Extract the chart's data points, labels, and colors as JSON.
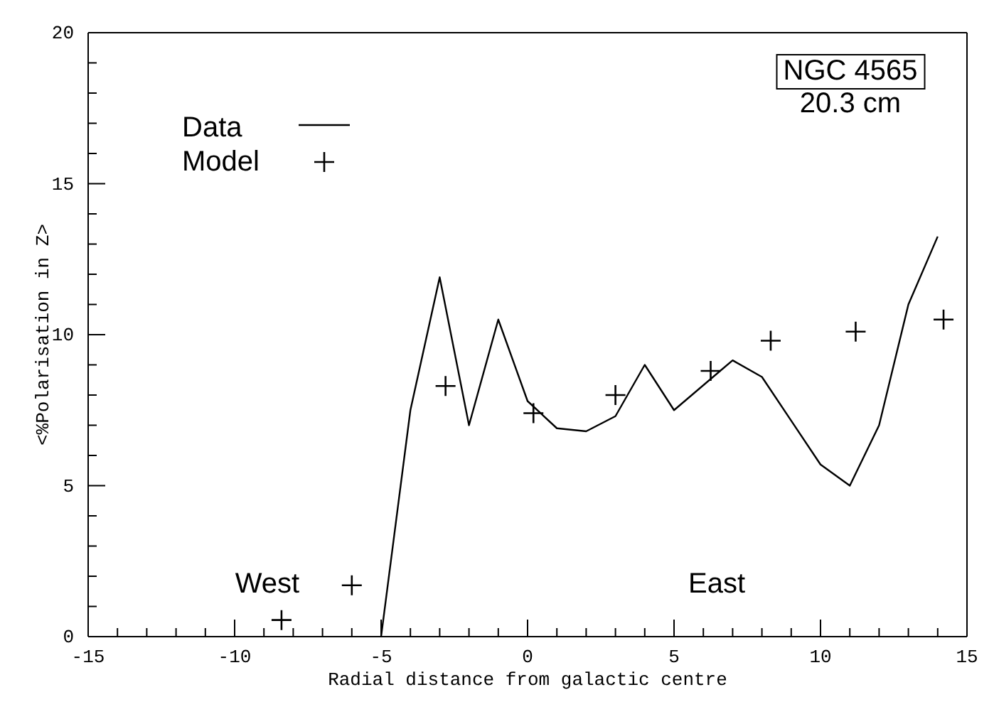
{
  "chart_data": {
    "type": "line",
    "xlabel": "Radial distance from galactic centre",
    "ylabel": "<%Polarisation in Z>",
    "series": [
      {
        "name": "Data",
        "type": "line",
        "color": "#000000",
        "marker": "none",
        "x": [
          -5,
          -4,
          -3,
          -2,
          -1,
          0,
          1,
          2,
          3,
          4,
          5,
          7,
          8,
          9,
          10,
          11,
          12,
          13,
          14
        ],
        "values": [
          0,
          7.5,
          11.9,
          7.0,
          10.5,
          7.8,
          6.9,
          6.8,
          7.3,
          9.0,
          7.5,
          9.15,
          8.6,
          7.15,
          5.7,
          5.0,
          7.0,
          11.0,
          13.25
        ]
      },
      {
        "name": "Model",
        "type": "scatter",
        "color": "#000000",
        "marker": "cross",
        "x": [
          -8.4,
          -6.0,
          -2.8,
          0.2,
          3.0,
          6.25,
          8.3,
          11.2,
          14.2
        ],
        "values": [
          0.55,
          1.7,
          8.3,
          7.4,
          8.0,
          8.8,
          9.8,
          10.1,
          10.5
        ]
      }
    ],
    "xlim": [
      -15,
      15
    ],
    "xticks": [
      -15,
      {
        "value": -14,
        "label": null
      },
      {
        "value": -13,
        "label": null
      },
      {
        "value": -12,
        "label": null
      },
      {
        "value": -11,
        "label": null
      },
      -10,
      {
        "value": -9,
        "label": null
      },
      {
        "value": -8,
        "label": null
      },
      {
        "value": -7,
        "label": null
      },
      {
        "value": -6,
        "label": null
      },
      -5,
      {
        "value": -4,
        "label": null
      },
      {
        "value": -3,
        "label": null
      },
      {
        "value": -2,
        "label": null
      },
      {
        "value": -1,
        "label": null
      },
      0,
      {
        "value": 1,
        "label": null
      },
      {
        "value": 2,
        "label": null
      },
      {
        "value": 3,
        "label": null
      },
      {
        "value": 4,
        "label": null
      },
      5,
      {
        "value": 6,
        "label": null
      },
      {
        "value": 7,
        "label": null
      },
      {
        "value": 8,
        "label": null
      },
      {
        "value": 9,
        "label": null
      },
      10,
      {
        "value": 11,
        "label": null
      },
      {
        "value": 12,
        "label": null
      },
      {
        "value": 13,
        "label": null
      },
      {
        "value": 14,
        "label": null
      },
      15
    ],
    "ylim": [
      0,
      20
    ],
    "yticks": [
      0,
      {
        "value": 1,
        "label": null
      },
      {
        "value": 2,
        "label": null
      },
      {
        "value": 3,
        "label": null
      },
      {
        "value": 4,
        "label": null
      },
      5,
      {
        "value": 6,
        "label": null
      },
      {
        "value": 7,
        "label": null
      },
      {
        "value": 8,
        "label": null
      },
      {
        "value": 9,
        "label": null
      },
      10,
      {
        "value": 11,
        "label": null
      },
      {
        "value": 12,
        "label": null
      },
      {
        "value": 13,
        "label": null
      },
      {
        "value": 14,
        "label": null
      },
      15,
      {
        "value": 16,
        "label": null
      },
      {
        "value": 17,
        "label": null
      },
      {
        "value": 18,
        "label": null
      },
      {
        "value": 19,
        "label": null
      },
      20
    ],
    "grid": false,
    "legend": "top left",
    "annotations": [
      "NGC 4565",
      "20.3 cm",
      "West",
      "East"
    ]
  }
}
